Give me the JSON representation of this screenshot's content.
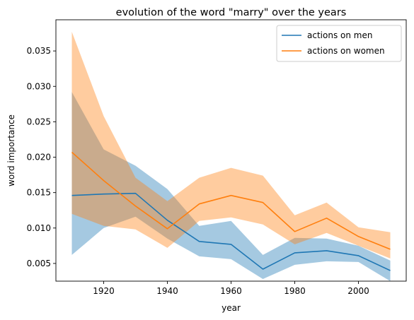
{
  "chart_data": {
    "type": "line",
    "title": "evolution of the word \"marry\" over the years",
    "xlabel": "year",
    "ylabel": "word importance",
    "xlim": [
      1905,
      2015
    ],
    "ylim": [
      0.0025,
      0.0394
    ],
    "xticks": [
      1920,
      1940,
      1960,
      1980,
      2000
    ],
    "yticks": [
      0.005,
      0.01,
      0.015,
      0.02,
      0.025,
      0.03,
      0.035
    ],
    "ytick_labels": [
      "0.005",
      "0.010",
      "0.015",
      "0.020",
      "0.025",
      "0.030",
      "0.035"
    ],
    "grid": false,
    "legend_position": "top-right",
    "x": [
      1910,
      1920,
      1930,
      1940,
      1950,
      1960,
      1970,
      1980,
      1990,
      2000,
      2010
    ],
    "series": [
      {
        "name": "actions on men",
        "color": "#1f77b4",
        "band_color": "#1f77b4",
        "values": [
          0.0146,
          0.0148,
          0.0149,
          0.0111,
          0.0081,
          0.0077,
          0.0042,
          0.0065,
          0.0068,
          0.0061,
          0.004
        ],
        "lower": [
          0.0062,
          0.01,
          0.0116,
          0.0085,
          0.006,
          0.0056,
          0.0028,
          0.0048,
          0.0053,
          0.0052,
          0.0025
        ],
        "upper": [
          0.0292,
          0.0211,
          0.0188,
          0.0155,
          0.0103,
          0.011,
          0.0062,
          0.0086,
          0.0085,
          0.0075,
          0.0054
        ]
      },
      {
        "name": "actions on women",
        "color": "#ff7f0e",
        "band_color": "#ff7f0e",
        "values": [
          0.0207,
          0.0167,
          0.0131,
          0.0099,
          0.0134,
          0.0146,
          0.0136,
          0.0095,
          0.0114,
          0.0088,
          0.007
        ],
        "lower": [
          0.012,
          0.0103,
          0.0098,
          0.0072,
          0.011,
          0.0115,
          0.0105,
          0.0077,
          0.0093,
          0.0075,
          0.0057
        ],
        "upper": [
          0.0377,
          0.0258,
          0.0171,
          0.0138,
          0.0171,
          0.0185,
          0.0174,
          0.0118,
          0.0136,
          0.0101,
          0.0094
        ]
      }
    ]
  }
}
